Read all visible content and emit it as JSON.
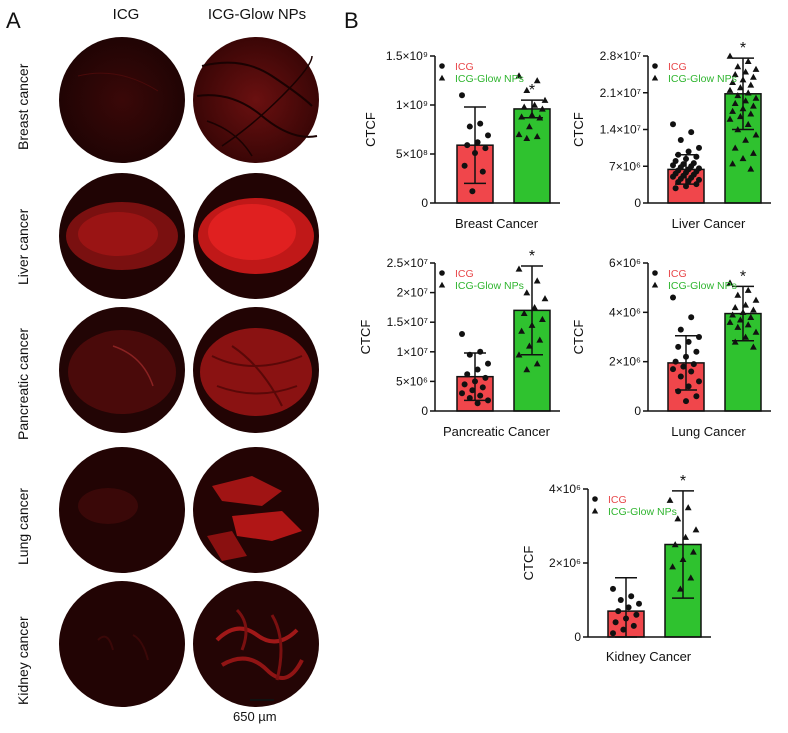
{
  "panel_a": {
    "letter": "A",
    "columns": [
      "ICG",
      "ICG-Glow NPs"
    ],
    "rows": [
      "Breast cancer",
      "Liver cancer",
      "Pancreatic cancer",
      "Lung cancer",
      "Kidney cancer"
    ],
    "scale_bar": "650 µm"
  },
  "panel_b": {
    "letter": "B"
  },
  "colors": {
    "icg": "#f0464b",
    "glow": "#2fc22f",
    "icg_text": "#e8474a",
    "glow_text": "#2fb52f"
  },
  "chart_data": [
    {
      "type": "bar",
      "id": "breast",
      "categories": [
        "ICG",
        "ICG-Glow NPs"
      ],
      "values": [
        590000000.0,
        960000000.0
      ],
      "errors": [
        390000000.0,
        90000000.0
      ],
      "ylim": [
        0,
        1500000000.0
      ],
      "yticks": [
        0,
        500000000.0,
        1000000000.0,
        1500000000.0
      ],
      "ytick_labels": [
        "0",
        "5×10⁸",
        "1×10⁹",
        "1.5×10⁹"
      ],
      "ylabel": "CTCF",
      "xlabel": "Breast  Cancer",
      "legend": [
        "ICG",
        "ICG-Glow NPs"
      ],
      "significance": "*",
      "points": [
        [
          1100000000.0,
          810000000.0,
          780000000.0,
          690000000.0,
          620000000.0,
          590000000.0,
          560000000.0,
          510000000.0,
          380000000.0,
          320000000.0,
          120000000.0
        ],
        [
          1300000000.0,
          1250000000.0,
          1150000000.0,
          1050000000.0,
          1000000000.0,
          980000000.0,
          960000000.0,
          900000000.0,
          880000000.0,
          870000000.0,
          780000000.0,
          700000000.0,
          680000000.0,
          660000000.0
        ]
      ]
    },
    {
      "type": "bar",
      "id": "liver",
      "categories": [
        "ICG",
        "ICG-Glow NPs"
      ],
      "values": [
        6400000.0,
        20800000.0
      ],
      "errors": [
        2800000.0,
        6800000.0
      ],
      "ylim": [
        0,
        28000000.0
      ],
      "yticks": [
        0,
        7000000.0,
        14000000.0,
        21000000.0,
        28000000.0
      ],
      "ytick_labels": [
        "0",
        "7×10⁶",
        "1.4×10⁷",
        "2.1×10⁷",
        "2.8×10⁷"
      ],
      "ylabel": "CTCF",
      "xlabel": "Liver Cancer",
      "legend": [
        "ICG",
        "ICG-Glow NPs"
      ],
      "significance": "*",
      "points": [
        [
          15000000.0,
          13500000.0,
          12000000.0,
          10500000.0,
          9800000.0,
          9200000.0,
          8800000.0,
          8400000.0,
          8000000.0,
          7600000.0,
          7400000.0,
          7200000.0,
          7000000.0,
          6800000.0,
          6600000.0,
          6400000.0,
          6200000.0,
          6000000.0,
          5800000.0,
          5600000.0,
          5400000.0,
          5200000.0,
          5000000.0,
          4800000.0,
          4600000.0,
          4400000.0,
          4200000.0,
          4000000.0,
          3600000.0,
          3200000.0,
          2800000.0
        ],
        [
          28000000.0,
          27000000.0,
          26000000.0,
          25500000.0,
          25000000.0,
          24500000.0,
          24000000.0,
          23500000.0,
          23000000.0,
          22500000.0,
          22000000.0,
          21500000.0,
          21000000.0,
          20500000.0,
          20000000.0,
          19500000.0,
          19000000.0,
          18500000.0,
          18000000.0,
          17500000.0,
          17000000.0,
          16500000.0,
          16000000.0,
          15000000.0,
          14000000.0,
          13000000.0,
          12000000.0,
          10500000.0,
          9500000.0,
          8500000.0,
          7500000.0,
          6500000.0
        ]
      ]
    },
    {
      "type": "bar",
      "id": "pancreatic",
      "categories": [
        "ICG",
        "ICG-Glow NPs"
      ],
      "values": [
        5800000.0,
        17000000.0
      ],
      "errors": [
        4000000.0,
        7500000.0
      ],
      "ylim": [
        0,
        25000000.0
      ],
      "yticks": [
        0,
        5000000.0,
        10000000.0,
        15000000.0,
        20000000.0,
        25000000.0
      ],
      "ytick_labels": [
        "0",
        "5×10⁶",
        "1×10⁷",
        "1.5×10⁷",
        "2×10⁷",
        "2.5×10⁷"
      ],
      "ylabel": "CTCF",
      "xlabel": "Pancreatic Cancer",
      "legend": [
        "ICG",
        "ICG-Glow NPs"
      ],
      "significance": "*",
      "points": [
        [
          13000000.0,
          10000000.0,
          9500000.0,
          8000000.0,
          7000000.0,
          6200000.0,
          5600000.0,
          5000000.0,
          4500000.0,
          4000000.0,
          3500000.0,
          3000000.0,
          2600000.0,
          2200000.0,
          1800000.0,
          1300000.0
        ],
        [
          24000000.0,
          22000000.0,
          20000000.0,
          19000000.0,
          17500000.0,
          16500000.0,
          15500000.0,
          14500000.0,
          13500000.0,
          12000000.0,
          11000000.0,
          9500000.0,
          8000000.0,
          7000000.0
        ]
      ]
    },
    {
      "type": "bar",
      "id": "lung",
      "categories": [
        "ICG",
        "ICG-Glow NPs"
      ],
      "values": [
        1950000.0,
        3950000.0
      ],
      "errors": [
        1100000.0,
        1100000.0
      ],
      "ylim": [
        0,
        6000000.0
      ],
      "yticks": [
        0,
        2000000.0,
        4000000.0,
        6000000.0
      ],
      "ytick_labels": [
        "0",
        "2×10⁶",
        "4×10⁶",
        "6×10⁶"
      ],
      "ylabel": "CTCF",
      "xlabel": "Lung Cancer",
      "legend": [
        "ICG",
        "ICG-Glow NPs"
      ],
      "significance": "*",
      "points": [
        [
          4600000.0,
          3800000.0,
          3300000.0,
          3000000.0,
          2800000.0,
          2600000.0,
          2400000.0,
          2200000.0,
          2000000.0,
          1900000.0,
          1800000.0,
          1700000.0,
          1600000.0,
          1400000.0,
          1200000.0,
          1000000.0,
          800000.0,
          600000.0,
          400000.0
        ],
        [
          5200000.0,
          4900000.0,
          4700000.0,
          4500000.0,
          4300000.0,
          4200000.0,
          4100000.0,
          4000000.0,
          3900000.0,
          3800000.0,
          3700000.0,
          3600000.0,
          3500000.0,
          3400000.0,
          3200000.0,
          3000000.0,
          2800000.0,
          2600000.0
        ]
      ]
    },
    {
      "type": "bar",
      "id": "kidney",
      "categories": [
        "ICG",
        "ICG-Glow NPs"
      ],
      "values": [
        700000.0,
        2500000.0
      ],
      "errors": [
        900000.0,
        1450000.0
      ],
      "ylim": [
        0,
        4000000.0
      ],
      "yticks": [
        0,
        2000000.0,
        4000000.0
      ],
      "ytick_labels": [
        "0",
        "2×10⁶",
        "4×10⁶"
      ],
      "ylabel": "CTCF",
      "xlabel": "Kidney Cancer",
      "legend": [
        "ICG",
        "ICG-Glow NPs"
      ],
      "significance": "*",
      "points": [
        [
          1300000.0,
          1100000.0,
          1000000.0,
          900000.0,
          800000.0,
          700000.0,
          600000.0,
          500000.0,
          400000.0,
          300000.0,
          200000.0,
          100000.0
        ],
        [
          3700000.0,
          3500000.0,
          3200000.0,
          2900000.0,
          2700000.0,
          2500000.0,
          2300000.0,
          2100000.0,
          1900000.0,
          1600000.0,
          1300000.0
        ]
      ]
    }
  ]
}
